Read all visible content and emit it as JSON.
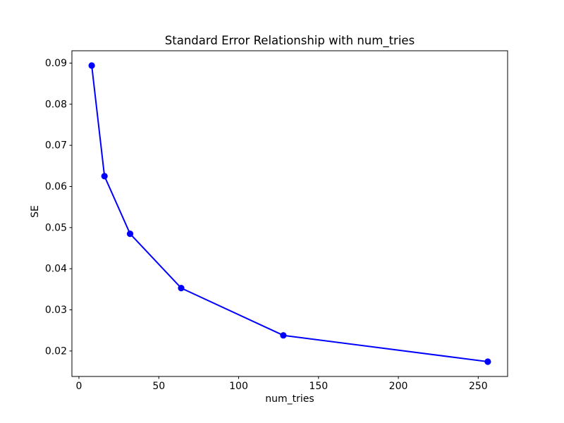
{
  "figure": {
    "background_color": "#ffffff",
    "axis_color": "#000000",
    "text_color": "#000000"
  },
  "chart_data": {
    "type": "line",
    "title": "Standard Error Relationship with num_tries",
    "xlabel": "num_tries",
    "ylabel": "SE",
    "x": [
      8,
      16,
      32,
      64,
      128,
      256
    ],
    "values": [
      0.0894,
      0.0625,
      0.0485,
      0.0353,
      0.0238,
      0.0174
    ],
    "line_color": "#0000ff",
    "marker_color": "#0000ff",
    "marker_style": "circle",
    "xlim": [
      -4.4,
      268.4
    ],
    "ylim": [
      0.0138,
      0.093
    ],
    "xticks": [
      0,
      50,
      100,
      150,
      200,
      250
    ],
    "xtick_labels": [
      "0",
      "50",
      "100",
      "150",
      "200",
      "250"
    ],
    "yticks": [
      0.02,
      0.03,
      0.04,
      0.05,
      0.06,
      0.07,
      0.08,
      0.09
    ],
    "ytick_labels": [
      "0.02",
      "0.03",
      "0.04",
      "0.05",
      "0.06",
      "0.07",
      "0.08",
      "0.09"
    ],
    "grid": false,
    "legend_position": "none"
  }
}
